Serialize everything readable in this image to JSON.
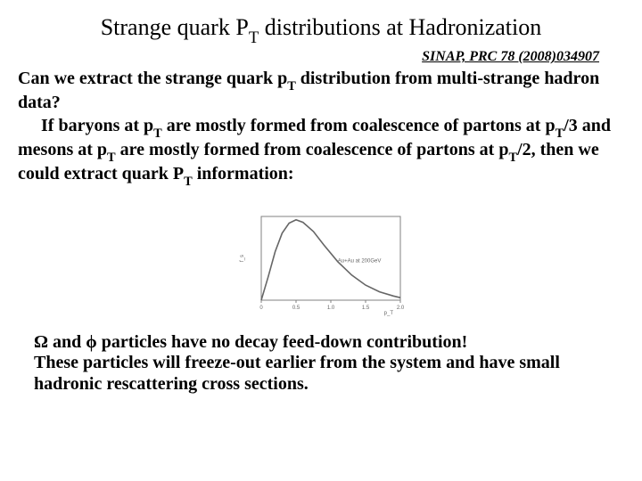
{
  "title_parts": {
    "a": "Strange quark P",
    "b": "T",
    "c": " distributions at Hadronization"
  },
  "citation": "SINAP, PRC 78 (2008)034907",
  "question": {
    "a": "Can we extract the strange quark p",
    "b": "T",
    "c": " distribution from multi-strange hadron data?"
  },
  "para": {
    "p1a": "If baryons at p",
    "p1b": "T",
    "p1c": " are mostly formed from coalescence of partons at p",
    "p1d": "T",
    "p1e": "/3 and mesons at p",
    "p1f": "T",
    "p1g": " are mostly formed from coalescence of partons at p",
    "p1h": "T",
    "p1i": "/2, then we could extract quark P",
    "p1j": "T",
    "p1k": " information:"
  },
  "footer": {
    "omega": "Ω",
    "phi": "ϕ",
    "l1a": " and ",
    "l1b": " particles have no decay feed-down contribution!",
    "l2": "These particles will freeze-out earlier from the system and have small hadronic rescattering cross sections."
  },
  "chart": {
    "type": "line",
    "width": 190,
    "height": 118,
    "background_color": "#ffffff",
    "axis_color": "#808080",
    "line_color": "#666666",
    "line_width": 1.6,
    "xlim": [
      0,
      2.0
    ],
    "ylim": [
      0,
      1.0
    ],
    "xticks": [
      0,
      0.5,
      1.0,
      1.5,
      2.0
    ],
    "xticklabels": [
      "0",
      "0.5",
      "1.0",
      "1.5",
      "2.0"
    ],
    "ylabel_img": "f_s",
    "xlabel": "p_T",
    "annotation": "Au+Au at 200GeV",
    "annotation_fontsize": 6,
    "tick_fontsize": 6,
    "curve": [
      [
        0.0,
        0.0
      ],
      [
        0.1,
        0.28
      ],
      [
        0.2,
        0.58
      ],
      [
        0.3,
        0.8
      ],
      [
        0.4,
        0.92
      ],
      [
        0.5,
        0.96
      ],
      [
        0.6,
        0.93
      ],
      [
        0.75,
        0.82
      ],
      [
        0.9,
        0.66
      ],
      [
        1.1,
        0.46
      ],
      [
        1.3,
        0.3
      ],
      [
        1.5,
        0.18
      ],
      [
        1.7,
        0.1
      ],
      [
        1.9,
        0.05
      ],
      [
        2.0,
        0.03
      ]
    ]
  }
}
